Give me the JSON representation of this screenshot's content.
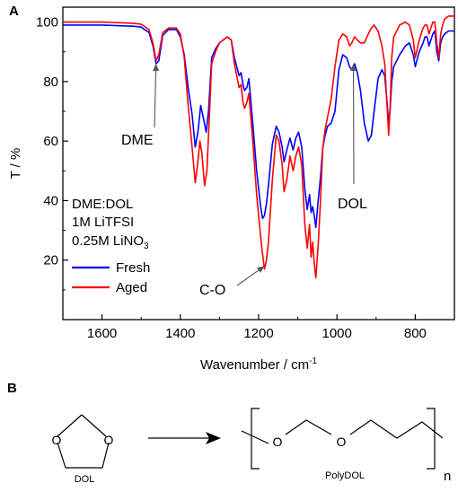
{
  "panel_a": {
    "label": "A",
    "chart_data": {
      "type": "line",
      "xlabel": "Wavenumber / cm",
      "xlabel_sup": "-1",
      "ylabel": "T / %",
      "xlim": [
        1700,
        700
      ],
      "ylim": [
        0,
        105
      ],
      "x_reversed": true,
      "x_ticks": [
        1600,
        1400,
        1200,
        1000,
        800
      ],
      "y_ticks": [
        20,
        40,
        60,
        80,
        100
      ],
      "grid": false,
      "legend_position": "lower-left",
      "series": [
        {
          "name": "Fresh",
          "color": "#0000ff",
          "x": [
            1700,
            1600,
            1520,
            1500,
            1480,
            1470,
            1462,
            1455,
            1445,
            1430,
            1410,
            1400,
            1390,
            1380,
            1370,
            1362,
            1355,
            1348,
            1340,
            1334,
            1328,
            1320,
            1310,
            1300,
            1280,
            1270,
            1262,
            1250,
            1245,
            1240,
            1236,
            1230,
            1225,
            1215,
            1205,
            1195,
            1190,
            1185,
            1180,
            1175,
            1165,
            1155,
            1148,
            1140,
            1135,
            1128,
            1120,
            1112,
            1105,
            1098,
            1090,
            1082,
            1076,
            1070,
            1066,
            1062,
            1058,
            1054,
            1048,
            1042,
            1036,
            1030,
            1024,
            1015,
            1005,
            995,
            985,
            975,
            968,
            962,
            955,
            948,
            940,
            930,
            920,
            912,
            905,
            895,
            885,
            878,
            872,
            868,
            864,
            860,
            855,
            840,
            825,
            815,
            805,
            800,
            790,
            780,
            775,
            770,
            765,
            760,
            755,
            750,
            745,
            740,
            735,
            730,
            725,
            715,
            700
          ],
          "y": [
            99,
            99,
            98.6,
            98.3,
            96.5,
            92,
            86,
            87,
            95.5,
            97.5,
            97.5,
            95,
            89,
            78,
            69,
            58,
            63,
            72,
            67,
            63,
            70,
            88,
            91,
            93,
            95,
            94,
            88,
            82,
            83,
            79,
            77,
            78,
            81,
            66,
            50,
            38,
            34,
            35,
            39,
            45,
            59,
            65,
            63,
            58,
            53,
            57,
            61,
            57,
            61,
            63,
            58,
            44,
            37,
            42,
            36,
            38,
            35,
            31,
            40,
            48,
            58,
            62,
            65,
            66,
            70,
            84,
            89,
            88,
            85,
            84,
            86,
            83,
            77,
            66,
            60,
            62,
            70,
            81,
            84,
            82,
            73,
            66,
            71,
            80,
            85,
            89,
            92,
            93,
            89,
            85,
            90,
            93,
            95,
            95,
            92,
            94,
            96,
            97,
            90,
            87,
            93,
            95,
            96,
            97,
            97
          ]
        },
        {
          "name": "Aged",
          "color": "#ff0000",
          "x": [
            1700,
            1600,
            1520,
            1500,
            1480,
            1470,
            1462,
            1455,
            1445,
            1430,
            1410,
            1400,
            1390,
            1380,
            1370,
            1362,
            1356,
            1350,
            1345,
            1338,
            1332,
            1326,
            1320,
            1310,
            1300,
            1280,
            1270,
            1262,
            1250,
            1245,
            1240,
            1236,
            1230,
            1225,
            1215,
            1205,
            1195,
            1190,
            1185,
            1180,
            1175,
            1165,
            1155,
            1148,
            1140,
            1135,
            1128,
            1120,
            1112,
            1105,
            1098,
            1090,
            1082,
            1076,
            1070,
            1066,
            1062,
            1058,
            1054,
            1048,
            1042,
            1036,
            1030,
            1024,
            1015,
            1005,
            995,
            985,
            975,
            968,
            962,
            955,
            948,
            940,
            930,
            920,
            912,
            905,
            895,
            885,
            878,
            872,
            868,
            864,
            860,
            855,
            840,
            825,
            815,
            805,
            800,
            790,
            780,
            775,
            770,
            765,
            760,
            755,
            750,
            745,
            740,
            735,
            730,
            725,
            715,
            700
          ],
          "y": [
            100,
            100,
            99.6,
            99.3,
            97.5,
            93,
            87,
            89,
            96.5,
            98,
            98,
            96,
            88,
            72,
            58,
            46,
            52,
            60,
            56,
            45,
            50,
            68,
            86,
            90,
            93,
            95,
            94,
            86,
            78,
            79,
            73,
            71,
            73,
            76,
            60,
            42,
            28,
            22,
            17,
            20,
            26,
            47,
            62,
            60,
            52,
            43,
            47,
            55,
            50,
            55,
            58,
            52,
            32,
            24,
            32,
            21,
            26,
            19,
            14,
            25,
            40,
            58,
            64,
            68,
            74,
            85,
            94,
            96,
            95,
            92,
            93,
            95,
            94,
            93,
            93,
            96,
            98,
            99,
            97,
            92,
            86,
            72,
            62,
            72,
            88,
            95,
            99,
            100,
            99,
            94,
            88,
            94,
            98,
            99,
            99,
            96,
            98,
            100,
            100,
            93,
            88,
            96,
            99,
            101,
            102,
            102
          ]
        }
      ],
      "annotations": [
        {
          "text": "DME",
          "target_x": 1462,
          "target_y": 86
        },
        {
          "text": "C-O",
          "target_x": 1185,
          "target_y": 18
        },
        {
          "text": "DOL",
          "target_x": 958,
          "target_y": 86
        }
      ],
      "inset_legend": {
        "lines": [
          "DME:DOL",
          "1M LiTFSI",
          "0.25M LiNO"
        ],
        "sub": "3"
      }
    }
  },
  "panel_b": {
    "label": "B",
    "dol_label": "DOL",
    "polydol_label": "PolyDOL",
    "oxygen_symbol": "O",
    "repeat_subscript": "n"
  }
}
